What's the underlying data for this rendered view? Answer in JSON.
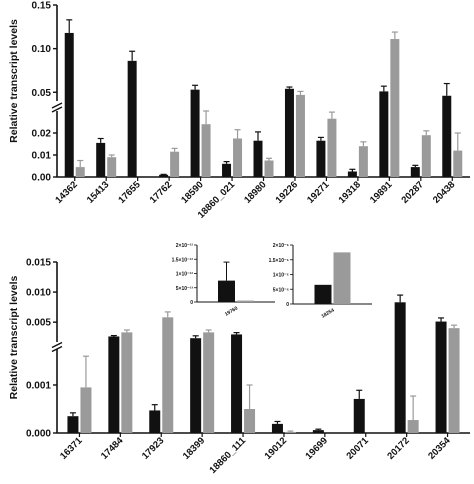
{
  "colors": {
    "black_series": "#111111",
    "grey_series": "#9a9a9a",
    "axis": "#111111"
  },
  "chart_data": [
    {
      "type": "bar",
      "panel": "top",
      "ylabel": "Relative transcript levels",
      "broken_axis": true,
      "lower_segment": {
        "ylim": [
          0,
          0.03
        ],
        "ticks": [
          0,
          0.01,
          0.02
        ],
        "tick_labels": [
          "0.00",
          "0.01",
          "0.02"
        ]
      },
      "upper_segment": {
        "ylim": [
          0.04,
          0.15
        ],
        "ticks": [
          0.05,
          0.1,
          0.15
        ],
        "tick_labels": [
          "0.05",
          "0.10",
          "0.15"
        ]
      },
      "categories": [
        "14362",
        "15413",
        "17655",
        "17762",
        "18590",
        "18860_021",
        "18980",
        "19226",
        "19271",
        "19318",
        "19891",
        "20287",
        "20438"
      ],
      "series": [
        {
          "values": [
            0.118,
            0.0155,
            0.086,
            0.001,
            0.053,
            0.006,
            0.0165,
            0.054,
            0.0165,
            0.0025,
            0.051,
            0.0045,
            0.046
          ],
          "errors": [
            0.015,
            0.002,
            0.011,
            0.0002,
            0.005,
            0.001,
            0.004,
            0.002,
            0.0015,
            0.001,
            0.006,
            0.0008,
            0.014
          ]
        },
        {
          "values": [
            0.0045,
            0.009,
            null,
            0.0115,
            0.024,
            0.0175,
            0.0075,
            0.047,
            0.0265,
            0.014,
            0.111,
            0.019,
            0.012
          ],
          "errors": [
            0.003,
            0.001,
            null,
            0.0015,
            0.006,
            0.004,
            0.001,
            0.004,
            0.003,
            0.002,
            0.008,
            0.002,
            0.008
          ]
        }
      ]
    },
    {
      "type": "bar",
      "panel": "bottom",
      "ylabel": "Relative transcript levels",
      "broken_axis": true,
      "lower_segment": {
        "ylim": [
          0,
          0.00175
        ],
        "ticks": [
          0,
          0.001
        ],
        "tick_labels": [
          "0.000",
          "0.001"
        ]
      },
      "upper_segment": {
        "ylim": [
          0.0017,
          0.015
        ],
        "ticks": [
          0.005,
          0.01,
          0.015
        ],
        "tick_labels": [
          "0.005",
          "0.010",
          "0.015"
        ]
      },
      "categories": [
        "16371",
        "17484",
        "17923",
        "18399",
        "18860_111",
        "19012",
        "19699",
        "20071",
        "20172",
        "20354"
      ],
      "series": [
        {
          "values": [
            0.00035,
            0.00262,
            0.00047,
            0.00233,
            0.00296,
            0.00019,
            6e-05,
            0.00071,
            0.0083,
            0.0051
          ],
          "errors": [
            7e-05,
            0.00015,
            0.00012,
            0.0004,
            0.0003,
            5e-05,
            2e-05,
            0.00018,
            0.0012,
            0.0006
          ]
        },
        {
          "values": [
            0.00095,
            0.0033,
            0.0058,
            0.0033,
            0.0005,
            2e-05,
            null,
            null,
            0.00027,
            0.004
          ],
          "errors": [
            0.00065,
            0.0004,
            0.0009,
            0.0004,
            0.0005,
            2e-05,
            null,
            null,
            0.0005,
            0.0005
          ]
        }
      ]
    },
    {
      "type": "bar",
      "panel": "inset",
      "categories": [
        "19760"
      ],
      "ylim": [
        0,
        2e-12
      ],
      "ticks": [
        0,
        5e-13,
        1e-12,
        1.5e-12,
        2e-12
      ],
      "tick_labels": [
        "0",
        "5×10⁻¹³",
        "1×10⁻¹²",
        "1.5×10⁻¹²",
        "2×10⁻¹²"
      ],
      "series": [
        {
          "values": [
            7.5e-13
          ],
          "errors": [
            6.5e-13
          ]
        },
        {
          "values": [
            5e-14
          ],
          "errors": [
            0
          ]
        }
      ]
    },
    {
      "type": "bar",
      "panel": "inset",
      "categories": [
        "18254"
      ],
      "ylim": [
        0,
        2e-05
      ],
      "ticks": [
        0,
        5e-06,
        1e-05,
        1.5e-05,
        2e-05
      ],
      "tick_labels": [
        "0",
        "5×10⁻⁶",
        "1×10⁻⁵",
        "1.5×10⁻⁵",
        "2×10⁻⁵"
      ],
      "series": [
        {
          "values": [
            6.5e-06
          ],
          "errors": [
            0
          ]
        },
        {
          "values": [
            1.75e-05
          ],
          "errors": [
            0
          ]
        }
      ]
    }
  ]
}
